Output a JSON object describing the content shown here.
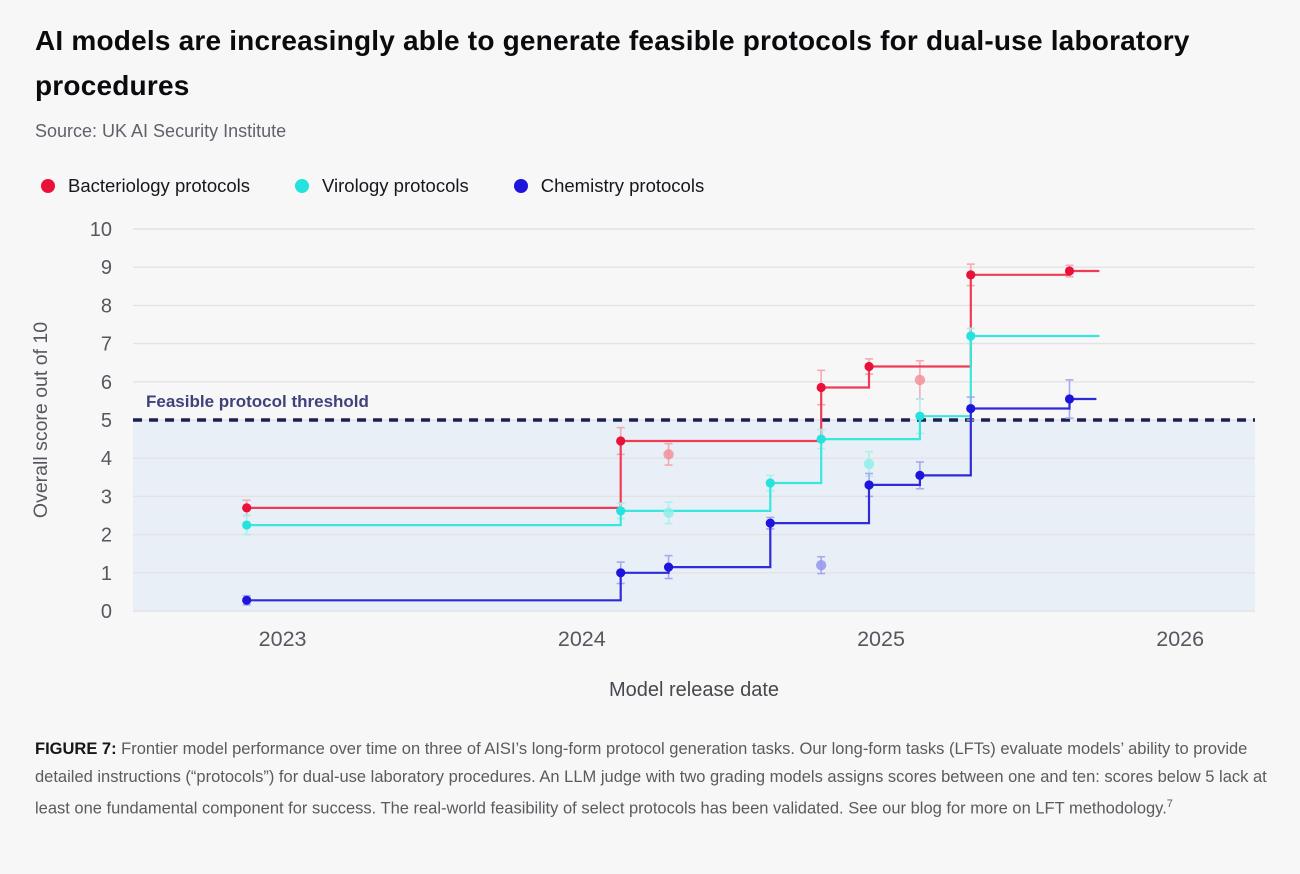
{
  "header": {
    "title": "AI models are increasingly able to generate feasible protocols for dual-use laboratory procedures",
    "source": "Source: UK AI Security Institute"
  },
  "legend": {
    "items": [
      {
        "label": "Bacteriology protocols",
        "color": "#EA1139"
      },
      {
        "label": "Virology protocols",
        "color": "#24E3DE"
      },
      {
        "label": "Chemistry protocols",
        "color": "#1D15DC"
      }
    ]
  },
  "caption": {
    "label": "FIGURE 7:",
    "text": " Frontier model performance over time on three of AISI’s long-form protocol generation tasks. Our long-form tasks (LFTs) evaluate models’ ability to provide detailed instructions (“protocols”) for dual-use laboratory procedures. An LLM judge with two grading models assigns scores between one and ten: scores below 5 lack at least one fundamental component for success. The real-world feasibility of select protocols has been validated.  See our blog for more on LFT methodology.",
    "footnote": "7"
  },
  "chart_data": {
    "type": "line",
    "subtype": "step-max-over-time with isolated model points and error bars",
    "title": "AI models are increasingly able to generate feasible protocols for dual-use laboratory procedures",
    "xlabel": "Model release date",
    "ylabel": "Overall score out of 10",
    "x_axis": {
      "range": [
        2022.5,
        2026.25
      ],
      "ticks": [
        2023,
        2024,
        2025,
        2026
      ],
      "grid": false
    },
    "y_axis": {
      "range": [
        0,
        10
      ],
      "ticks": [
        0,
        1,
        2,
        3,
        4,
        5,
        6,
        7,
        8,
        9,
        10
      ],
      "grid": true
    },
    "threshold": {
      "value": 5,
      "label": "Feasible protocol threshold",
      "line_color": "#1B2153",
      "label_color": "#3F437B",
      "below_fill": "#E9EFF6"
    },
    "grid_color": "#E3E3E6",
    "axis_text_color": "#55585E",
    "axis_title_color": "#46484D",
    "legend_position": "top-left",
    "series": [
      {
        "name": "Bacteriology protocols",
        "color": "#EF3B53",
        "dot_color": "#EA1139",
        "fade_color": "#F2909E",
        "err_color": "#F5A6B0",
        "steps": [
          {
            "x": 2022.88,
            "y": 2.7,
            "err": 0.2
          },
          {
            "x": 2024.13,
            "y": 4.45,
            "err": 0.35
          },
          {
            "x": 2024.8,
            "y": 5.85,
            "err": 0.45
          },
          {
            "x": 2024.96,
            "y": 6.4,
            "err": 0.2
          },
          {
            "x": 2025.3,
            "y": 8.8,
            "err": 0.28
          },
          {
            "x": 2025.63,
            "y": 8.9,
            "err": 0.15
          }
        ],
        "line_end": 2025.73,
        "faded_points": [
          {
            "x": 2024.29,
            "y": 4.1,
            "err": 0.28
          },
          {
            "x": 2025.13,
            "y": 6.05,
            "err": 0.5
          }
        ]
      },
      {
        "name": "Virology protocols",
        "color": "#38E8DD",
        "dot_color": "#24E3DE",
        "fade_color": "#8FEFE8",
        "err_color": "#A8F2ED",
        "steps": [
          {
            "x": 2022.88,
            "y": 2.25,
            "err": 0.25
          },
          {
            "x": 2024.13,
            "y": 2.62,
            "err": 0.2
          },
          {
            "x": 2024.63,
            "y": 3.35,
            "err": 0.2
          },
          {
            "x": 2024.8,
            "y": 4.5,
            "err": 0.25
          },
          {
            "x": 2025.13,
            "y": 5.1,
            "err": 0.45
          },
          {
            "x": 2025.3,
            "y": 7.2,
            "err": 0.2
          }
        ],
        "line_end": 2025.73,
        "faded_points": [
          {
            "x": 2024.29,
            "y": 2.57,
            "err": 0.28
          },
          {
            "x": 2024.96,
            "y": 3.85,
            "err": 0.32
          }
        ]
      },
      {
        "name": "Chemistry protocols",
        "color": "#2F2BD8",
        "dot_color": "#1D15DC",
        "fade_color": "#9598EC",
        "err_color": "#A3A6F0",
        "steps": [
          {
            "x": 2022.88,
            "y": 0.28,
            "err": 0.12
          },
          {
            "x": 2024.13,
            "y": 1.0,
            "err": 0.28
          },
          {
            "x": 2024.29,
            "y": 1.15,
            "err": 0.3
          },
          {
            "x": 2024.63,
            "y": 2.3,
            "err": 0.15
          },
          {
            "x": 2024.96,
            "y": 3.3,
            "err": 0.3
          },
          {
            "x": 2025.13,
            "y": 3.55,
            "err": 0.35
          },
          {
            "x": 2025.3,
            "y": 5.3,
            "err": 0.3
          },
          {
            "x": 2025.63,
            "y": 5.55,
            "err": 0.5
          }
        ],
        "line_end": 2025.72,
        "faded_points": [
          {
            "x": 2024.8,
            "y": 1.2,
            "err": 0.22
          }
        ]
      }
    ]
  }
}
